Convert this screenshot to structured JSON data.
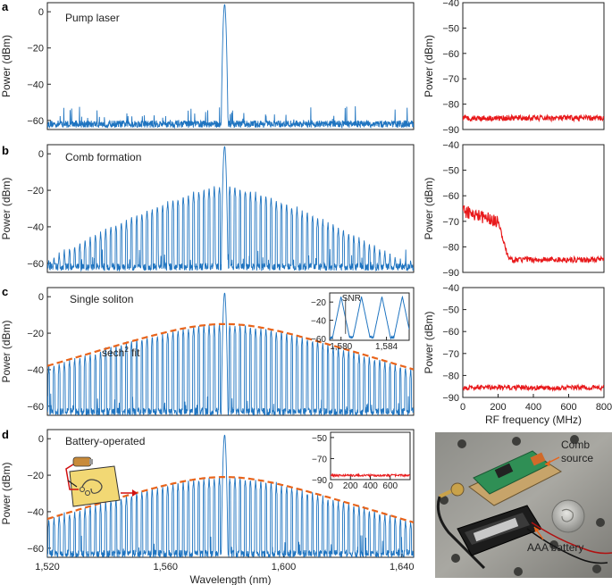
{
  "colors": {
    "spectrum": "#1f74c0",
    "rf": "#e8191b",
    "fit": "#e8641b",
    "axis": "#222222"
  },
  "panel_labels": [
    "a",
    "b",
    "c",
    "d"
  ],
  "chart_data": [
    {
      "id": "a-spectrum",
      "type": "line",
      "annotation": "Pump laser",
      "ylabel": "Power (dBm)",
      "xlim": [
        1520,
        1644
      ],
      "ylim": [
        -65,
        5
      ],
      "yticks": [
        {
          "v": 0,
          "label": "0"
        },
        {
          "v": -20,
          "label": "−20"
        },
        {
          "v": -40,
          "label": "−40"
        },
        {
          "v": -60,
          "label": "−60"
        }
      ],
      "spectrum": {
        "center": 1580,
        "peak": 4,
        "floor": -62,
        "comb": false
      },
      "series": [
        {
          "color": "#1f74c0"
        }
      ]
    },
    {
      "id": "a-rf",
      "type": "line",
      "ylabel": "Power (dBm)",
      "xlim": [
        0,
        800
      ],
      "ylim": [
        -90,
        -40
      ],
      "yticks": [
        {
          "v": -40,
          "label": "−40"
        },
        {
          "v": -50,
          "label": "−50"
        },
        {
          "v": -60,
          "label": "−60"
        },
        {
          "v": -70,
          "label": "−70"
        },
        {
          "v": -80,
          "label": "−80"
        },
        {
          "v": -90,
          "label": "−90"
        }
      ],
      "rf": {
        "floor": -85.5,
        "bump": false
      },
      "series": [
        {
          "color": "#e8191b"
        }
      ]
    },
    {
      "id": "b-spectrum",
      "type": "line",
      "annotation": "Comb formation",
      "ylabel": "Power (dBm)",
      "xlim": [
        1520,
        1644
      ],
      "ylim": [
        -65,
        5
      ],
      "yticks": [
        {
          "v": 0,
          "label": "0"
        },
        {
          "v": -20,
          "label": "−20"
        },
        {
          "v": -40,
          "label": "−40"
        },
        {
          "v": -60,
          "label": "−60"
        }
      ],
      "spectrum": {
        "center": 1580,
        "peak": 4,
        "floor": -62,
        "comb": true,
        "envelope_peak": -17,
        "envelope_edge": -58,
        "mode_spacing": 1.75
      },
      "series": [
        {
          "color": "#1f74c0"
        }
      ]
    },
    {
      "id": "b-rf",
      "type": "line",
      "ylabel": "Power (dBm)",
      "xlim": [
        0,
        800
      ],
      "ylim": [
        -90,
        -40
      ],
      "yticks": [
        {
          "v": -40,
          "label": "−40"
        },
        {
          "v": -50,
          "label": "−50"
        },
        {
          "v": -60,
          "label": "−60"
        },
        {
          "v": -70,
          "label": "−70"
        },
        {
          "v": -80,
          "label": "−80"
        },
        {
          "v": -90,
          "label": "−90"
        }
      ],
      "rf": {
        "floor": -85,
        "bump": true,
        "bump_level": -66,
        "bump_end": 200
      },
      "series": [
        {
          "color": "#e8191b"
        }
      ]
    },
    {
      "id": "c-spectrum",
      "type": "line",
      "annotation": "Single soliton",
      "fit_label": "sech",
      "fit_label_sup": "2",
      "fit_label_tail": " fit",
      "ylabel": "Power (dBm)",
      "xlim": [
        1520,
        1644
      ],
      "ylim": [
        -65,
        5
      ],
      "yticks": [
        {
          "v": 0,
          "label": "0"
        },
        {
          "v": -20,
          "label": "−20"
        },
        {
          "v": -40,
          "label": "−40"
        },
        {
          "v": -60,
          "label": "−60"
        }
      ],
      "spectrum": {
        "center": 1580,
        "peak": 2,
        "floor": -63,
        "comb": true,
        "envelope_peak": -15,
        "sech_width": 18,
        "mode_spacing": 1.75
      },
      "fit": {
        "peak": -15,
        "width": 18,
        "color": "#e8641b"
      },
      "inset": {
        "annotation": "SNR",
        "xlim": [
          1579,
          1586
        ],
        "ylim": [
          -62,
          -10
        ],
        "xticks": [
          {
            "v": 1580,
            "label": "1,580"
          },
          {
            "v": 1584,
            "label": "1,584"
          }
        ],
        "yticks": [
          {
            "v": -20,
            "label": "−20"
          },
          {
            "v": -40,
            "label": "−40"
          },
          {
            "v": -60,
            "label": "−60"
          }
        ],
        "peaks": [
          1580.0,
          1581.8,
          1583.6,
          1585.4
        ]
      },
      "series": [
        {
          "color": "#1f74c0"
        }
      ]
    },
    {
      "id": "c-rf",
      "type": "line",
      "xlabel": "RF frequency (MHz)",
      "ylabel": "Power (dBm)",
      "xlim": [
        0,
        800
      ],
      "ylim": [
        -90,
        -40
      ],
      "xticks": [
        {
          "v": 0,
          "label": "0"
        },
        {
          "v": 200,
          "label": "200"
        },
        {
          "v": 400,
          "label": "400"
        },
        {
          "v": 600,
          "label": "600"
        },
        {
          "v": 800,
          "label": "800"
        }
      ],
      "yticks": [
        {
          "v": -40,
          "label": "−40"
        },
        {
          "v": -50,
          "label": "−50"
        },
        {
          "v": -60,
          "label": "−60"
        },
        {
          "v": -70,
          "label": "−70"
        },
        {
          "v": -80,
          "label": "−80"
        },
        {
          "v": -90,
          "label": "−90"
        }
      ],
      "rf": {
        "floor": -85.5,
        "bump": false
      },
      "series": [
        {
          "color": "#e8191b"
        }
      ]
    },
    {
      "id": "d-spectrum",
      "type": "line",
      "annotation": "Battery-operated",
      "xlabel": "Wavelength (nm)",
      "ylabel": "Power (dBm)",
      "xlim": [
        1520,
        1644
      ],
      "ylim": [
        -65,
        5
      ],
      "xticks": [
        {
          "v": 1520,
          "label": "1,520"
        },
        {
          "v": 1560,
          "label": "1,560"
        },
        {
          "v": 1600,
          "label": "1,600"
        },
        {
          "v": 1640,
          "label": "1,640"
        }
      ],
      "yticks": [
        {
          "v": 0,
          "label": "0"
        },
        {
          "v": -20,
          "label": "−20"
        },
        {
          "v": -40,
          "label": "−40"
        },
        {
          "v": -60,
          "label": "−60"
        }
      ],
      "spectrum": {
        "center": 1580,
        "peak": 2,
        "floor": -63,
        "comb": true,
        "envelope_peak": -21,
        "sech_width": 18,
        "mode_spacing": 1.75
      },
      "fit": {
        "peak": -21,
        "width": 18,
        "color": "#e8641b"
      },
      "inset": {
        "xlim": [
          0,
          800
        ],
        "ylim": [
          -90,
          -45
        ],
        "xticks": [
          {
            "v": 0,
            "label": "0"
          },
          {
            "v": 200,
            "label": "200"
          },
          {
            "v": 400,
            "label": "400"
          },
          {
            "v": 600,
            "label": "600"
          }
        ],
        "yticks": [
          {
            "v": -50,
            "label": "−50"
          },
          {
            "v": -70,
            "label": "−70"
          },
          {
            "v": -90,
            "label": "−90"
          }
        ],
        "floor": -86
      },
      "series": [
        {
          "color": "#1f74c0"
        }
      ]
    }
  ],
  "photo": {
    "comb_label_1": "Comb",
    "comb_label_2": "source",
    "battery_label": "AAA battery",
    "coin_icon": "quarter-coin-icon",
    "board_icon": "circuit-board-icon"
  }
}
